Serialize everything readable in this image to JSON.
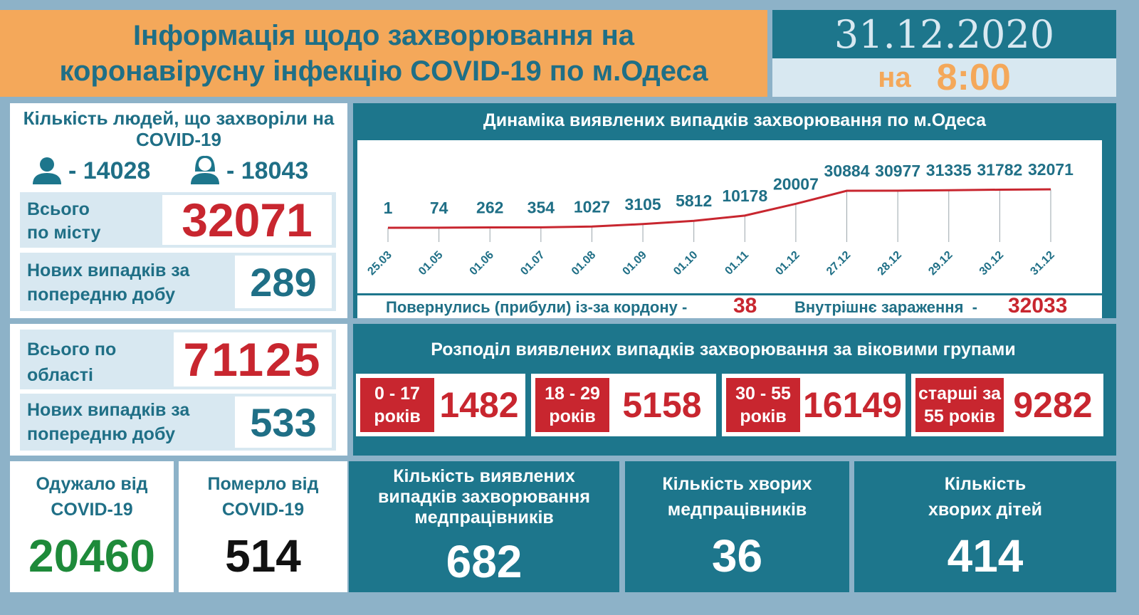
{
  "header": {
    "title_line1": "Інформація щодо захворювання на",
    "title_line2": "коронавірусну інфекцію COVID-19 по м.Одеса",
    "date": "31.12.2020",
    "time_prefix": "на",
    "time": "8:00"
  },
  "sick": {
    "title": "Кількість людей, що захворіли на COVID-19",
    "men": "- 14028",
    "women": "- 18043"
  },
  "city": {
    "total_label": "Всього по місту",
    "total": 32071,
    "new_label": "Нових випадків за попередню добу",
    "new": 289
  },
  "region": {
    "total_label": "Всього по області",
    "total": 71125,
    "new_label": "Нових випадків за попередню добу",
    "new": 533
  },
  "chart_data": {
    "type": "line",
    "title": "Динаміка виявлених випадків захворювання по м.Одеса",
    "categories": [
      "25.03",
      "01.05",
      "01.06",
      "01.07",
      "01.08",
      "01.09",
      "01.10",
      "01.11",
      "01.12",
      "27.12",
      "28.12",
      "29.12",
      "30.12",
      "31.12"
    ],
    "values": [
      1,
      74,
      262,
      354,
      1027,
      3105,
      5812,
      10178,
      20007,
      30884,
      30977,
      31335,
      31782,
      32071
    ],
    "color": "#c8262f"
  },
  "origin": {
    "border_label": "Повернулись (прибули) із-за кордону -",
    "border": 38,
    "internal_label": "Внутрішнє зараження  -",
    "internal": 32033
  },
  "age": {
    "title": "Розподіл виявлених випадків захворювання за віковими групами",
    "groups": [
      {
        "label": "0 - 17 років",
        "count": 1482
      },
      {
        "label": "18 - 29 років",
        "count": 5158
      },
      {
        "label": "30 - 55 років",
        "count": 16149
      },
      {
        "label": "старші за 55 років",
        "count": 9282
      }
    ]
  },
  "bottom": {
    "recovered_label": "Одужало від COVID-19",
    "recovered": 20460,
    "died_label": "Померло від COVID-19",
    "died": 514,
    "medics_label": "Кількість виявлених випадків захворювання медпрацівників",
    "medics": 682,
    "medics_sick_label": "Кількість хворих медпрацівників",
    "medics_sick": 36,
    "children_label": "Кількість хворих дітей",
    "children": 414
  }
}
